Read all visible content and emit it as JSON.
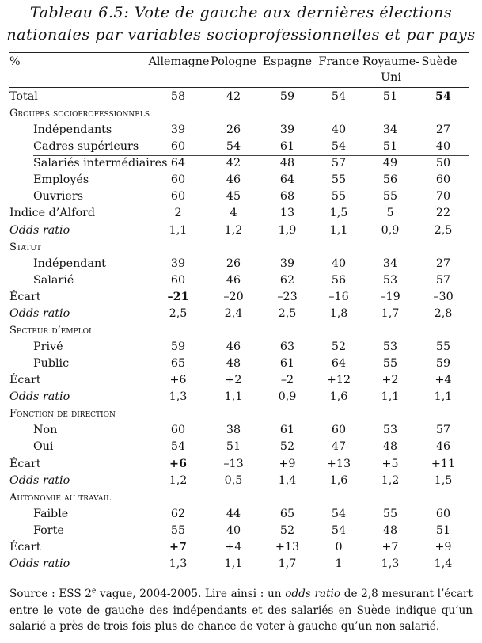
{
  "title": {
    "line1": "Tableau 6.5: Vote de gauche aux dernières élections",
    "line2": "nationales par variables socioprofessionnelles et par pays"
  },
  "header": {
    "unit": "%",
    "columns": [
      "Allemagne",
      "Pologne",
      "Espagne",
      "France",
      "Royaume-Uni",
      "Suède"
    ],
    "uk_line1": "Royaume-",
    "uk_line2": "Uni"
  },
  "rows": [
    {
      "label": "Total",
      "style": "normal",
      "values": [
        "58",
        "42",
        "59",
        "54",
        "51",
        "54"
      ],
      "bold": [
        5
      ]
    },
    {
      "label": "Groupes socioprofessionnels",
      "style": "section",
      "values": []
    },
    {
      "label": "Indépendants",
      "style": "sub",
      "values": [
        "39",
        "26",
        "39",
        "40",
        "34",
        "27"
      ]
    },
    {
      "label": "Cadres supérieurs",
      "style": "sub",
      "values": [
        "60",
        "54",
        "61",
        "54",
        "51",
        "40"
      ]
    },
    {
      "label": "Salariés intermédiaires",
      "style": "sub",
      "values": [
        "64",
        "42",
        "48",
        "57",
        "49",
        "50"
      ]
    },
    {
      "label": "Employés",
      "style": "sub",
      "values": [
        "60",
        "46",
        "64",
        "55",
        "56",
        "60"
      ]
    },
    {
      "label": "Ouvriers",
      "style": "sub",
      "values": [
        "60",
        "45",
        "68",
        "55",
        "55",
        "70"
      ]
    },
    {
      "label": "Indice d’Alford",
      "style": "normal",
      "values": [
        "2",
        "4",
        "13",
        "1,5",
        "5",
        "22"
      ]
    },
    {
      "label": "Odds ratio",
      "style": "italic",
      "values": [
        "1,1",
        "1,2",
        "1,9",
        "1,1",
        "0,9",
        "2,5"
      ]
    },
    {
      "label": "Statut",
      "style": "section",
      "values": []
    },
    {
      "label": "Indépendant",
      "style": "sub",
      "values": [
        "39",
        "26",
        "39",
        "40",
        "34",
        "27"
      ]
    },
    {
      "label": "Salarié",
      "style": "sub",
      "values": [
        "60",
        "46",
        "62",
        "56",
        "53",
        "57"
      ]
    },
    {
      "label": "Écart",
      "style": "normal",
      "values": [
        "–21",
        "–20",
        "–23",
        "–16",
        "–19",
        "–30"
      ],
      "bold": [
        0
      ]
    },
    {
      "label": "Odds ratio",
      "style": "italic",
      "values": [
        "2,5",
        "2,4",
        "2,5",
        "1,8",
        "1,7",
        "2,8"
      ]
    },
    {
      "label": "Secteur d’emploi",
      "style": "section",
      "values": []
    },
    {
      "label": "Privé",
      "style": "sub",
      "values": [
        "59",
        "46",
        "63",
        "52",
        "53",
        "55"
      ]
    },
    {
      "label": "Public",
      "style": "sub",
      "values": [
        "65",
        "48",
        "61",
        "64",
        "55",
        "59"
      ]
    },
    {
      "label": "Écart",
      "style": "normal",
      "values": [
        "+6",
        "+2",
        "–2",
        "+12",
        "+2",
        "+4"
      ]
    },
    {
      "label": "Odds ratio",
      "style": "italic",
      "values": [
        "1,3",
        "1,1",
        "0,9",
        "1,6",
        "1,1",
        "1,1"
      ]
    },
    {
      "label": "Fonction de direction",
      "style": "section",
      "values": []
    },
    {
      "label": "Non",
      "style": "sub",
      "values": [
        "60",
        "38",
        "61",
        "60",
        "53",
        "57"
      ]
    },
    {
      "label": "Oui",
      "style": "sub",
      "values": [
        "54",
        "51",
        "52",
        "47",
        "48",
        "46"
      ]
    },
    {
      "label": "Écart",
      "style": "normal",
      "values": [
        "+6",
        "–13",
        "+9",
        "+13",
        "+5",
        "+11"
      ],
      "bold": [
        0
      ]
    },
    {
      "label": "Odds ratio",
      "style": "italic",
      "values": [
        "1,2",
        "0,5",
        "1,4",
        "1,6",
        "1,2",
        "1,5"
      ]
    },
    {
      "label": "Autonomie au travail",
      "style": "section",
      "values": []
    },
    {
      "label": "Faible",
      "style": "sub",
      "values": [
        "62",
        "44",
        "65",
        "54",
        "55",
        "60"
      ]
    },
    {
      "label": "Forte",
      "style": "sub",
      "values": [
        "55",
        "40",
        "52",
        "54",
        "48",
        "51"
      ]
    },
    {
      "label": "Écart",
      "style": "normal",
      "values": [
        "+7",
        "+4",
        "+13",
        "0",
        "+7",
        "+9"
      ],
      "bold": [
        0
      ]
    },
    {
      "label": "Odds ratio",
      "style": "italic",
      "values": [
        "1,3",
        "1,1",
        "1,7",
        "1",
        "1,3",
        "1,4"
      ]
    }
  ],
  "source": {
    "part1": "Source : ESS 2",
    "sup": "e",
    "part2": " vague, 2004-2005. Lire ainsi : un ",
    "italic": "odds ratio",
    "part3": " de 2,8 mesurant l’écart entre le vote de gauche des indépendants et des salariés en Suède indique qu’un salarié a près de trois fois plus de chance de voter à gauche qu’un non salarié."
  }
}
